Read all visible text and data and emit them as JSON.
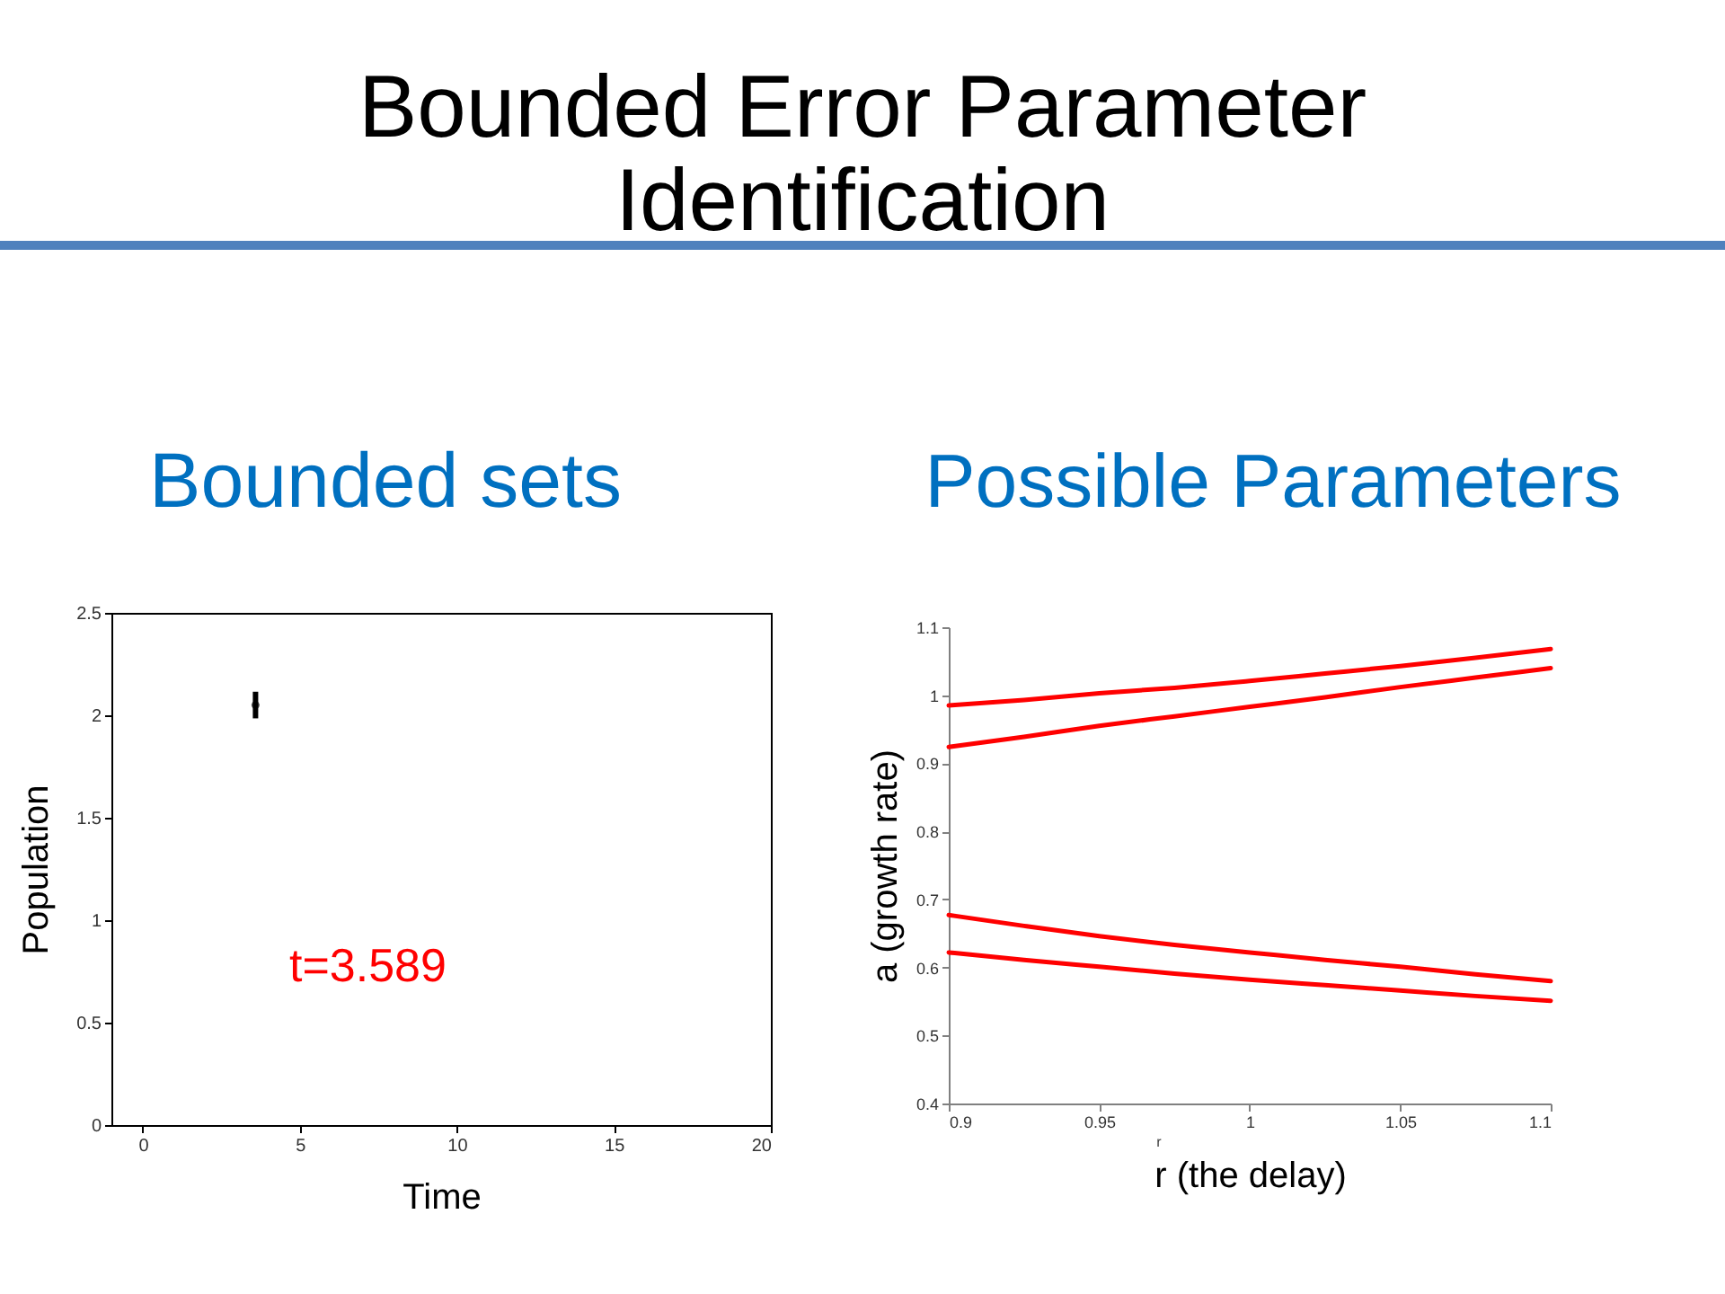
{
  "chart_data": [
    {
      "type": "scatter",
      "title": "Bounded Error Parameter Identification",
      "subtitle": "Bounded sets",
      "xlabel": "Time",
      "ylabel": "Population",
      "x": [
        3.589
      ],
      "values": [
        2.05
      ],
      "errors": [
        0.065
      ],
      "color": "#000000",
      "marker": "circle",
      "xlim": [
        -1,
        20
      ],
      "xticks": [
        0,
        5,
        10,
        15,
        20
      ],
      "ylim": [
        0,
        2.5
      ],
      "yticks": [
        0,
        0.5,
        1,
        1.5,
        2,
        2.5
      ],
      "annotations": [
        "t=3.589"
      ]
    },
    {
      "type": "line",
      "title": "Possible Parameters",
      "xlabel": "r (the delay)",
      "ylabel": "a (growth rate)",
      "x": [
        0.9,
        0.925,
        0.95,
        0.975,
        1,
        1.025,
        1.05,
        1.075,
        1.1
      ],
      "series": [
        {
          "color": "#ff0000",
          "values": [
            0.985,
            0.993,
            1.003,
            1.011,
            1.021,
            1.032,
            1.043,
            1.055,
            1.068
          ]
        },
        {
          "color": "#ff0000",
          "values": [
            0.924,
            0.939,
            0.955,
            0.969,
            0.983,
            0.997,
            1.012,
            1.026,
            1.04
          ]
        },
        {
          "color": "#ff0000",
          "values": [
            0.677,
            0.661,
            0.646,
            0.633,
            0.622,
            0.611,
            0.601,
            0.59,
            0.58
          ]
        },
        {
          "color": "#ff0000",
          "values": [
            0.622,
            0.611,
            0.601,
            0.591,
            0.582,
            0.574,
            0.566,
            0.558,
            0.551
          ]
        }
      ],
      "xlim": [
        0.9,
        1.1
      ],
      "xticks": [
        0.9,
        0.95,
        1,
        1.05,
        1.1
      ],
      "ylim": [
        0.4,
        1.1
      ],
      "yticks": [
        0.4,
        0.5,
        0.6,
        0.7,
        0.8,
        0.9,
        1,
        1.1
      ],
      "annotations": [
        "r"
      ]
    }
  ]
}
